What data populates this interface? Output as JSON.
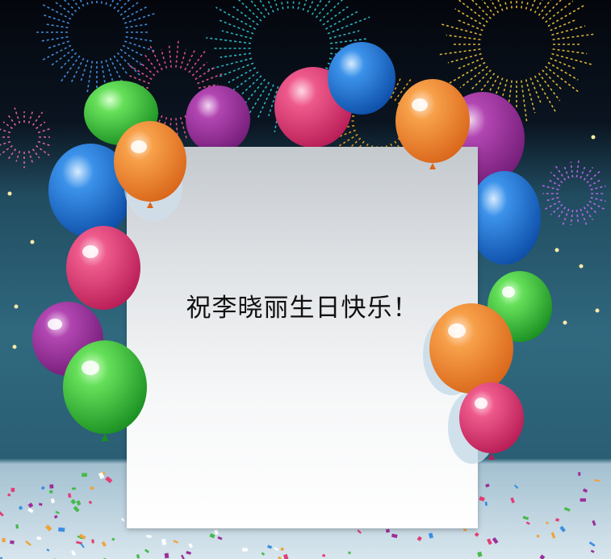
{
  "greeting_card": {
    "message": "祝李晓丽生日快乐！"
  },
  "colors": {
    "night_sky": "#05070d",
    "teal_band": "#2f6a82",
    "floor": "#a9c6d6",
    "balloon_green": "#3fbf3f",
    "balloon_blue": "#1f6fd0",
    "balloon_pink": "#e23e76",
    "balloon_orange": "#f08a2c",
    "balloon_purple": "#9b2f9a"
  }
}
